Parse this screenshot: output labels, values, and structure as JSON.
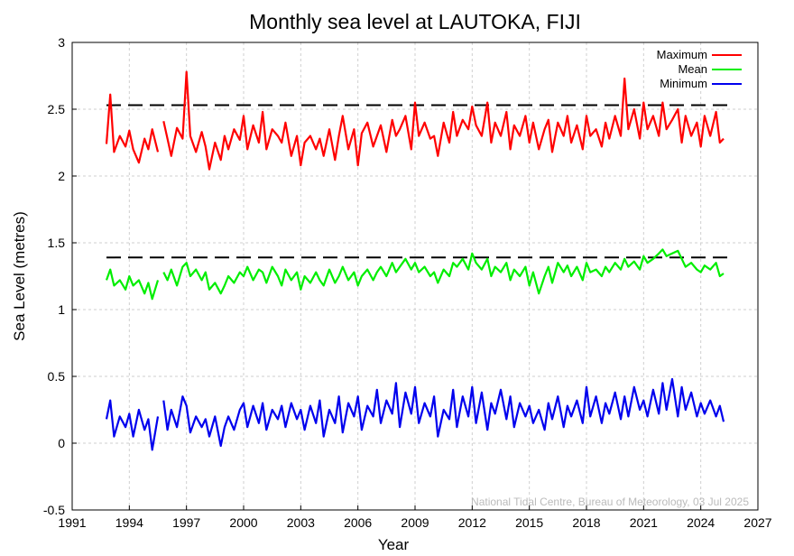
{
  "chart_data": {
    "type": "line",
    "title": "Monthly sea level at LAUTOKA, FIJI",
    "xlabel": "Year",
    "ylabel": "Sea Level (metres)",
    "xlim": [
      1991,
      2027
    ],
    "ylim": [
      -0.5,
      3
    ],
    "xticks": [
      1991,
      1994,
      1997,
      2000,
      2003,
      2006,
      2009,
      2012,
      2015,
      2018,
      2021,
      2024,
      2027
    ],
    "yticks": [
      -0.5,
      0,
      0.5,
      1,
      1.5,
      2,
      2.5,
      3
    ],
    "xtick_labels": [
      "1991",
      "1994",
      "1997",
      "2000",
      "2003",
      "2006",
      "2009",
      "2012",
      "2015",
      "2018",
      "2021",
      "2024",
      "2027"
    ],
    "ytick_labels": [
      "-0.5",
      "0",
      "0.5",
      "1",
      "1.5",
      "2",
      "2.5",
      "3"
    ],
    "grid": true,
    "legend_position": "top-right",
    "reference_lines": [
      {
        "y": 2.53,
        "style": "dashed",
        "color": "#000000"
      },
      {
        "y": 1.39,
        "style": "dashed",
        "color": "#000000"
      }
    ],
    "credit": "National Tidal Centre, Bureau of Meteorology, 03 Jul 2025",
    "series": [
      {
        "name": "Maximum",
        "color": "#ff0000",
        "x": [
          1992.8,
          1993.0,
          1993.2,
          1993.5,
          1993.8,
          1994.0,
          1994.2,
          1994.5,
          1994.8,
          1995.0,
          1995.2,
          1995.5,
          null,
          1995.8,
          1996.0,
          1996.2,
          1996.5,
          1996.8,
          1997.0,
          1997.2,
          1997.5,
          1997.8,
          1998.0,
          1998.2,
          1998.5,
          1998.8,
          1999.0,
          1999.2,
          1999.5,
          1999.8,
          2000.0,
          2000.2,
          2000.5,
          2000.8,
          2001.0,
          2001.2,
          2001.5,
          2001.8,
          2002.0,
          2002.2,
          2002.5,
          2002.8,
          2003.0,
          2003.2,
          2003.5,
          2003.8,
          2004.0,
          2004.2,
          2004.5,
          2004.8,
          2005.0,
          2005.2,
          2005.5,
          2005.8,
          2006.0,
          2006.2,
          2006.5,
          2006.8,
          2007.0,
          2007.2,
          2007.5,
          2007.8,
          2008.0,
          2008.2,
          2008.5,
          2008.8,
          2009.0,
          2009.2,
          2009.5,
          2009.8,
          2010.0,
          2010.2,
          2010.5,
          2010.8,
          2011.0,
          2011.2,
          2011.5,
          2011.8,
          2012.0,
          2012.2,
          2012.5,
          2012.8,
          2013.0,
          2013.2,
          2013.5,
          2013.8,
          2014.0,
          2014.2,
          2014.5,
          2014.8,
          2015.0,
          2015.2,
          2015.5,
          2015.8,
          2016.0,
          2016.2,
          2016.5,
          2016.8,
          2017.0,
          2017.2,
          2017.5,
          2017.8,
          2018.0,
          2018.2,
          2018.5,
          2018.8,
          2019.0,
          2019.2,
          2019.5,
          2019.8,
          2020.0,
          2020.2,
          2020.5,
          2020.8,
          2021.0,
          2021.2,
          2021.5,
          2021.8,
          2022.0,
          2022.2,
          2022.5,
          2022.8,
          2023.0,
          2023.2,
          2023.5,
          2023.8,
          2024.0,
          2024.2,
          2024.5,
          2024.8,
          2025.0,
          2025.2
        ],
        "values": [
          2.24,
          2.61,
          2.18,
          2.3,
          2.22,
          2.34,
          2.2,
          2.1,
          2.28,
          2.2,
          2.35,
          2.18,
          null,
          2.41,
          2.28,
          2.15,
          2.36,
          2.28,
          2.78,
          2.3,
          2.18,
          2.33,
          2.22,
          2.05,
          2.25,
          2.12,
          2.3,
          2.2,
          2.35,
          2.27,
          2.45,
          2.2,
          2.38,
          2.25,
          2.48,
          2.2,
          2.35,
          2.3,
          2.25,
          2.4,
          2.15,
          2.3,
          2.08,
          2.25,
          2.3,
          2.2,
          2.28,
          2.15,
          2.35,
          2.12,
          2.3,
          2.45,
          2.2,
          2.35,
          2.08,
          2.32,
          2.4,
          2.22,
          2.3,
          2.38,
          2.18,
          2.42,
          2.3,
          2.35,
          2.45,
          2.2,
          2.55,
          2.3,
          2.4,
          2.28,
          2.3,
          2.15,
          2.4,
          2.25,
          2.48,
          2.3,
          2.42,
          2.35,
          2.52,
          2.38,
          2.3,
          2.55,
          2.25,
          2.4,
          2.3,
          2.48,
          2.2,
          2.38,
          2.3,
          2.45,
          2.25,
          2.4,
          2.2,
          2.35,
          2.42,
          2.18,
          2.4,
          2.3,
          2.45,
          2.25,
          2.38,
          2.2,
          2.45,
          2.3,
          2.35,
          2.22,
          2.4,
          2.28,
          2.45,
          2.3,
          2.73,
          2.35,
          2.5,
          2.28,
          2.55,
          2.35,
          2.45,
          2.3,
          2.55,
          2.35,
          2.42,
          2.5,
          2.25,
          2.45,
          2.3,
          2.4,
          2.22,
          2.45,
          2.3,
          2.48,
          2.25,
          2.28
        ]
      },
      {
        "name": "Mean",
        "color": "#00ee00",
        "x": [
          1992.8,
          1993.0,
          1993.2,
          1993.5,
          1993.8,
          1994.0,
          1994.2,
          1994.5,
          1994.8,
          1995.0,
          1995.2,
          1995.5,
          null,
          1995.8,
          1996.0,
          1996.2,
          1996.5,
          1996.8,
          1997.0,
          1997.2,
          1997.5,
          1997.8,
          1998.0,
          1998.2,
          1998.5,
          1998.8,
          1999.0,
          1999.2,
          1999.5,
          1999.8,
          2000.0,
          2000.2,
          2000.5,
          2000.8,
          2001.0,
          2001.2,
          2001.5,
          2001.8,
          2002.0,
          2002.2,
          2002.5,
          2002.8,
          2003.0,
          2003.2,
          2003.5,
          2003.8,
          2004.0,
          2004.2,
          2004.5,
          2004.8,
          2005.0,
          2005.2,
          2005.5,
          2005.8,
          2006.0,
          2006.2,
          2006.5,
          2006.8,
          2007.0,
          2007.2,
          2007.5,
          2007.8,
          2008.0,
          2008.2,
          2008.5,
          2008.8,
          2009.0,
          2009.2,
          2009.5,
          2009.8,
          2010.0,
          2010.2,
          2010.5,
          2010.8,
          2011.0,
          2011.2,
          2011.5,
          2011.8,
          2012.0,
          2012.2,
          2012.5,
          2012.8,
          2013.0,
          2013.2,
          2013.5,
          2013.8,
          2014.0,
          2014.2,
          2014.5,
          2014.8,
          2015.0,
          2015.2,
          2015.5,
          2015.8,
          2016.0,
          2016.2,
          2016.5,
          2016.8,
          2017.0,
          2017.2,
          2017.5,
          2017.8,
          2018.0,
          2018.2,
          2018.5,
          2018.8,
          2019.0,
          2019.2,
          2019.5,
          2019.8,
          2020.0,
          2020.2,
          2020.5,
          2020.8,
          2021.0,
          2021.2,
          2021.5,
          2021.8,
          2022.0,
          2022.2,
          2022.5,
          2022.8,
          2023.0,
          2023.2,
          2023.5,
          2023.8,
          2024.0,
          2024.2,
          2024.5,
          2024.8,
          2025.0,
          2025.2
        ],
        "values": [
          1.22,
          1.3,
          1.18,
          1.22,
          1.15,
          1.25,
          1.18,
          1.22,
          1.12,
          1.2,
          1.08,
          1.22,
          null,
          1.28,
          1.22,
          1.3,
          1.18,
          1.32,
          1.35,
          1.25,
          1.3,
          1.22,
          1.28,
          1.15,
          1.2,
          1.12,
          1.18,
          1.25,
          1.2,
          1.28,
          1.25,
          1.32,
          1.22,
          1.3,
          1.28,
          1.2,
          1.32,
          1.25,
          1.18,
          1.3,
          1.22,
          1.28,
          1.15,
          1.25,
          1.2,
          1.28,
          1.22,
          1.18,
          1.3,
          1.2,
          1.25,
          1.32,
          1.22,
          1.28,
          1.18,
          1.25,
          1.3,
          1.22,
          1.28,
          1.32,
          1.25,
          1.35,
          1.28,
          1.32,
          1.38,
          1.3,
          1.35,
          1.28,
          1.32,
          1.25,
          1.28,
          1.2,
          1.3,
          1.25,
          1.35,
          1.32,
          1.38,
          1.3,
          1.42,
          1.35,
          1.3,
          1.38,
          1.25,
          1.32,
          1.28,
          1.35,
          1.22,
          1.3,
          1.25,
          1.32,
          1.18,
          1.28,
          1.12,
          1.25,
          1.32,
          1.2,
          1.35,
          1.28,
          1.33,
          1.25,
          1.32,
          1.22,
          1.35,
          1.28,
          1.3,
          1.25,
          1.32,
          1.28,
          1.35,
          1.3,
          1.38,
          1.32,
          1.36,
          1.3,
          1.4,
          1.35,
          1.38,
          1.42,
          1.45,
          1.4,
          1.42,
          1.44,
          1.38,
          1.32,
          1.35,
          1.3,
          1.28,
          1.33,
          1.3,
          1.35,
          1.25,
          1.27
        ]
      },
      {
        "name": "Minimum",
        "color": "#0000ee",
        "x": [
          1992.8,
          1993.0,
          1993.2,
          1993.5,
          1993.8,
          1994.0,
          1994.2,
          1994.5,
          1994.8,
          1995.0,
          1995.2,
          1995.5,
          null,
          1995.8,
          1996.0,
          1996.2,
          1996.5,
          1996.8,
          1997.0,
          1997.2,
          1997.5,
          1997.8,
          1998.0,
          1998.2,
          1998.5,
          1998.8,
          1999.0,
          1999.2,
          1999.5,
          1999.8,
          2000.0,
          2000.2,
          2000.5,
          2000.8,
          2001.0,
          2001.2,
          2001.5,
          2001.8,
          2002.0,
          2002.2,
          2002.5,
          2002.8,
          2003.0,
          2003.2,
          2003.5,
          2003.8,
          2004.0,
          2004.2,
          2004.5,
          2004.8,
          2005.0,
          2005.2,
          2005.5,
          2005.8,
          2006.0,
          2006.2,
          2006.5,
          2006.8,
          2007.0,
          2007.2,
          2007.5,
          2007.8,
          2008.0,
          2008.2,
          2008.5,
          2008.8,
          2009.0,
          2009.2,
          2009.5,
          2009.8,
          2010.0,
          2010.2,
          2010.5,
          2010.8,
          2011.0,
          2011.2,
          2011.5,
          2011.8,
          2012.0,
          2012.2,
          2012.5,
          2012.8,
          2013.0,
          2013.2,
          2013.5,
          2013.8,
          2014.0,
          2014.2,
          2014.5,
          2014.8,
          2015.0,
          2015.2,
          2015.5,
          2015.8,
          2016.0,
          2016.2,
          2016.5,
          2016.8,
          2017.0,
          2017.2,
          2017.5,
          2017.8,
          2018.0,
          2018.2,
          2018.5,
          2018.8,
          2019.0,
          2019.2,
          2019.5,
          2019.8,
          2020.0,
          2020.2,
          2020.5,
          2020.8,
          2021.0,
          2021.2,
          2021.5,
          2021.8,
          2022.0,
          2022.2,
          2022.5,
          2022.8,
          2023.0,
          2023.2,
          2023.5,
          2023.8,
          2024.0,
          2024.2,
          2024.5,
          2024.8,
          2025.0,
          2025.2
        ],
        "values": [
          0.18,
          0.32,
          0.05,
          0.2,
          0.12,
          0.22,
          0.05,
          0.25,
          0.1,
          0.18,
          -0.05,
          0.2,
          null,
          0.32,
          0.1,
          0.25,
          0.12,
          0.35,
          0.28,
          0.08,
          0.2,
          0.12,
          0.18,
          0.05,
          0.2,
          -0.02,
          0.12,
          0.2,
          0.1,
          0.25,
          0.3,
          0.12,
          0.28,
          0.15,
          0.3,
          0.1,
          0.25,
          0.18,
          0.28,
          0.12,
          0.3,
          0.18,
          0.25,
          0.1,
          0.28,
          0.15,
          0.32,
          0.05,
          0.25,
          0.15,
          0.35,
          0.08,
          0.3,
          0.2,
          0.35,
          0.1,
          0.28,
          0.2,
          0.4,
          0.15,
          0.32,
          0.22,
          0.45,
          0.12,
          0.38,
          0.22,
          0.42,
          0.15,
          0.3,
          0.2,
          0.35,
          0.05,
          0.25,
          0.18,
          0.4,
          0.12,
          0.35,
          0.2,
          0.42,
          0.15,
          0.38,
          0.1,
          0.3,
          0.22,
          0.4,
          0.18,
          0.35,
          0.12,
          0.3,
          0.2,
          0.28,
          0.15,
          0.25,
          0.1,
          0.3,
          0.18,
          0.35,
          0.12,
          0.28,
          0.2,
          0.32,
          0.15,
          0.42,
          0.2,
          0.35,
          0.15,
          0.3,
          0.22,
          0.38,
          0.18,
          0.35,
          0.2,
          0.42,
          0.25,
          0.32,
          0.2,
          0.4,
          0.22,
          0.45,
          0.25,
          0.48,
          0.2,
          0.42,
          0.25,
          0.38,
          0.2,
          0.3,
          0.22,
          0.32,
          0.2,
          0.28,
          0.16
        ]
      }
    ]
  }
}
